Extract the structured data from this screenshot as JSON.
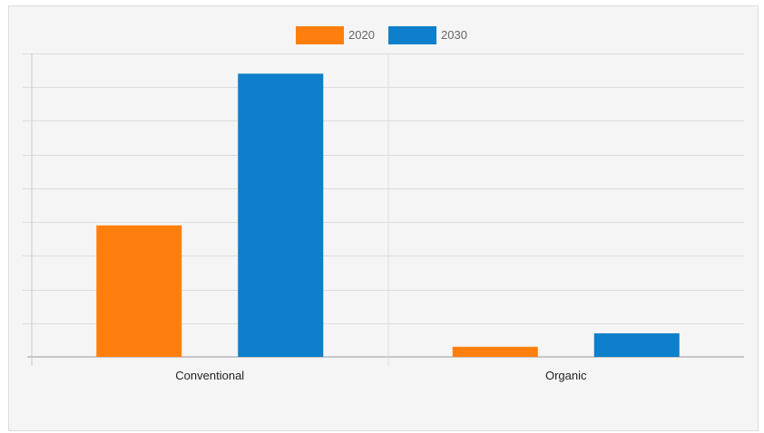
{
  "chart_data": {
    "type": "bar",
    "categories": [
      "Conventional",
      "Organic"
    ],
    "series": [
      {
        "name": "2020",
        "color": "#ff7f0e",
        "values": [
          39,
          3
        ]
      },
      {
        "name": "2030",
        "color": "#0e7fca",
        "values": [
          84,
          7
        ]
      }
    ],
    "ylim": [
      0,
      90
    ],
    "y_gridlines": 9,
    "grid": true,
    "legend_position": "top-center"
  }
}
